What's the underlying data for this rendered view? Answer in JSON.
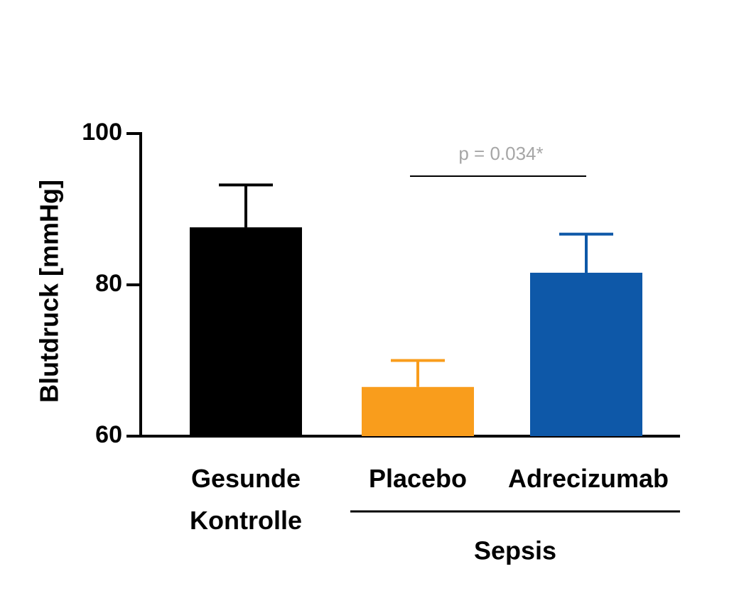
{
  "chart_data": {
    "type": "bar",
    "y_label": "Blutdruck [mmHg]",
    "categories": [
      "Gesunde Kontrolle",
      "Placebo",
      "Adrecizumab"
    ],
    "values": [
      87.6,
      66.5,
      81.6
    ],
    "errors": [
      5.6,
      3.5,
      5.1
    ],
    "colors": [
      "#000000",
      "#f99d1c",
      "#0e58a8"
    ],
    "ylim": [
      60,
      100
    ],
    "yticks": [
      60,
      80,
      100
    ],
    "annotation": "p = 0.034*",
    "group_label": "Sepsis"
  }
}
